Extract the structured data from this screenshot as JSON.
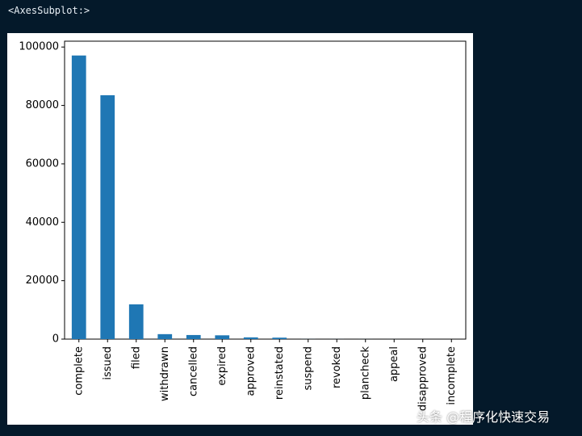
{
  "output_header": "<AxesSubplot:>",
  "watermark": "头条 @程序化快速交易",
  "colors": {
    "page_background": "#04192a",
    "figure_background": "#ffffff",
    "bar": "#1f77b4",
    "header_text": "#e6edf3"
  },
  "chart_data": {
    "type": "bar",
    "title": "",
    "xlabel": "",
    "ylabel": "",
    "categories": [
      "complete",
      "issued",
      "filed",
      "withdrawn",
      "cancelled",
      "expired",
      "approved",
      "reinstated",
      "suspend",
      "revoked",
      "plancheck",
      "appeal",
      "disapproved",
      "incomplete"
    ],
    "values": [
      97100,
      83500,
      11900,
      1700,
      1400,
      1300,
      600,
      500,
      20,
      15,
      10,
      5,
      3,
      1
    ],
    "ylim": [
      0,
      102000
    ],
    "yticks": [
      0,
      20000,
      40000,
      60000,
      80000,
      100000
    ],
    "ytick_labels": [
      "0",
      "20000",
      "40000",
      "60000",
      "80000",
      "100000"
    ],
    "grid": false,
    "legend": "none"
  }
}
